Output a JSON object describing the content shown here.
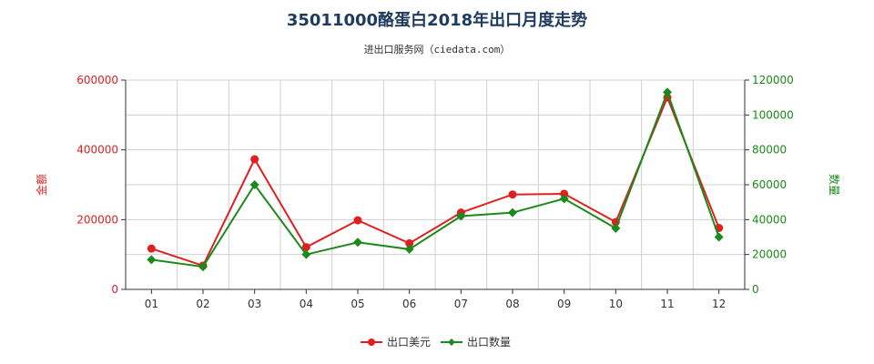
{
  "chart_data": {
    "type": "line",
    "title": "35011000酪蛋白2018年出口月度走势",
    "subtitle": "进出口服务网（ciedata.com）",
    "categories": [
      "01",
      "02",
      "03",
      "04",
      "05",
      "06",
      "07",
      "08",
      "09",
      "10",
      "11",
      "12"
    ],
    "y_left": {
      "label": "金额",
      "ticks": [
        "0",
        "200000",
        "400000",
        "600000"
      ],
      "range": [
        0,
        600000
      ],
      "color": "#e02020"
    },
    "y_right": {
      "label": "数量",
      "ticks": [
        "0",
        "20000",
        "40000",
        "60000",
        "80000",
        "100000",
        "120000"
      ],
      "range": [
        0,
        120000
      ],
      "color": "#1a8a1a"
    },
    "series": [
      {
        "name": "出口美元",
        "axis": "left",
        "color": "#e02020",
        "values": [
          117000,
          68000,
          373000,
          121000,
          198000,
          132000,
          220000,
          272000,
          274000,
          193000,
          550000,
          176000
        ]
      },
      {
        "name": "出口数量",
        "axis": "right",
        "color": "#1a8a1a",
        "values": [
          17000,
          13000,
          60000,
          20000,
          27000,
          23000,
          42000,
          44000,
          52000,
          35000,
          113000,
          30000
        ]
      }
    ],
    "grid": true,
    "legend_position": "bottom"
  }
}
